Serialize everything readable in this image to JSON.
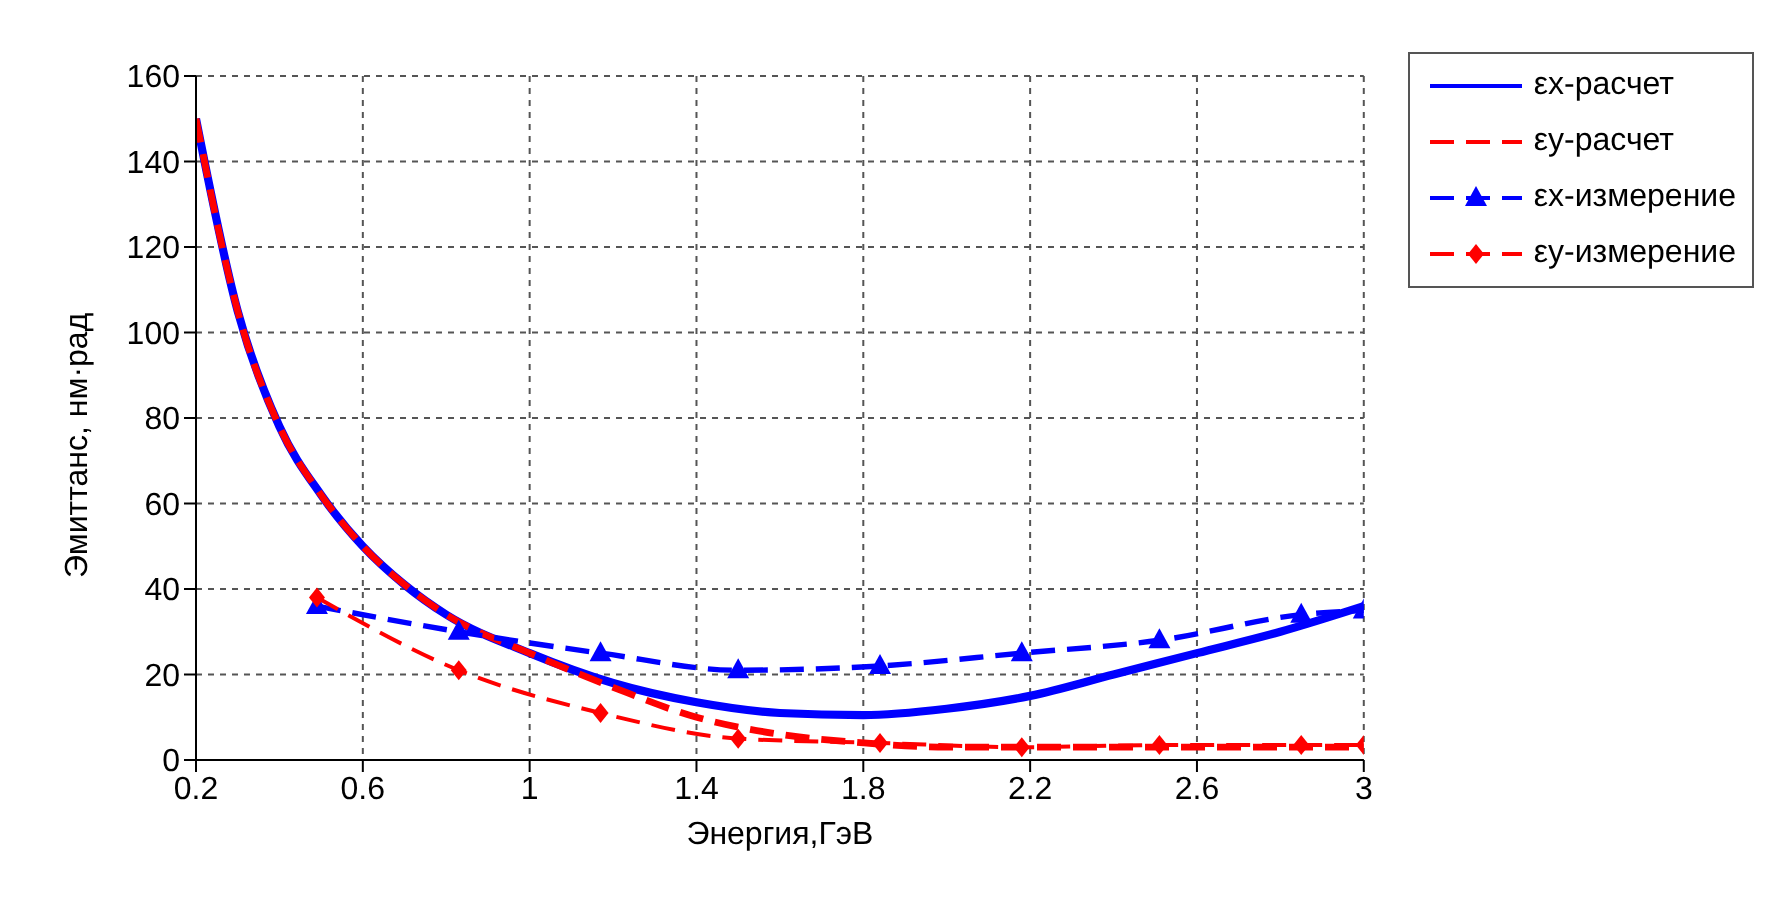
{
  "chart_data": {
    "type": "line",
    "xlabel": "Энергия,ГэВ",
    "ylabel": "Эмиттанс, нм·рад",
    "xlim": [
      0.2,
      3
    ],
    "xticks": [
      0.2,
      0.6,
      1,
      1.4,
      1.8,
      2.2,
      2.6,
      3
    ],
    "ylim": [
      0,
      160
    ],
    "yticks": [
      0,
      20,
      40,
      60,
      80,
      100,
      120,
      140,
      160
    ],
    "grid": true,
    "legend": "top right",
    "series": [
      {
        "name": "εx-расчет",
        "color": "#0000ff",
        "line_style": "solid",
        "marker": "none",
        "x": [
          0.2,
          0.3,
          0.4,
          0.5,
          0.6,
          0.7,
          0.8,
          1.0,
          1.2,
          1.4,
          1.6,
          1.8,
          2.0,
          2.2,
          2.4,
          2.6,
          2.8,
          3.0
        ],
        "values": [
          150,
          105,
          78,
          62,
          50,
          41,
          34,
          25,
          18,
          13.5,
          11,
          10.5,
          12,
          15,
          20,
          25,
          30,
          36
        ]
      },
      {
        "name": "εy-расчет",
        "color": "#ff0000",
        "line_style": "dashed",
        "marker": "none",
        "x": [
          0.2,
          0.3,
          0.4,
          0.5,
          0.6,
          0.7,
          0.8,
          1.0,
          1.2,
          1.4,
          1.6,
          1.8,
          2.0,
          2.2,
          2.4,
          2.6,
          2.8,
          3.0
        ],
        "values": [
          150,
          105,
          78,
          62,
          50,
          41,
          34,
          25,
          17,
          10,
          6,
          4,
          3,
          3,
          3,
          3,
          3,
          3
        ]
      },
      {
        "name": "εx-измерение",
        "color": "#0000ff",
        "line_style": "dashed",
        "marker": "triangle",
        "x": [
          0.49,
          0.83,
          1.17,
          1.5,
          1.84,
          2.18,
          2.51,
          2.85,
          3.0
        ],
        "values": [
          36,
          30,
          25,
          21,
          22,
          25,
          28,
          34,
          35
        ]
      },
      {
        "name": "εy-измерение",
        "color": "#ff0000",
        "line_style": "dashed",
        "marker": "diamond",
        "x": [
          0.49,
          0.83,
          1.17,
          1.5,
          1.84,
          2.18,
          2.51,
          2.85,
          3.0
        ],
        "values": [
          38,
          21,
          11,
          5,
          4,
          3,
          3.5,
          3.5,
          3.5
        ]
      }
    ]
  }
}
